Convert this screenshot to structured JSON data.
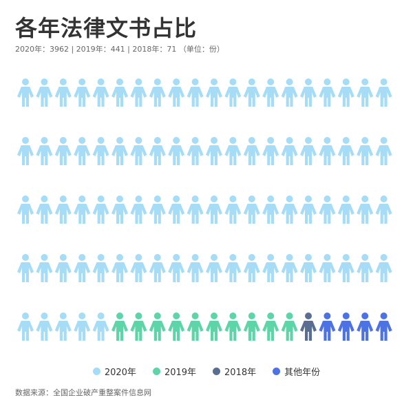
{
  "title": "各年法律文书占比",
  "subtitle": "2020年：3962 | 2019年：441 | 2018年：71 （单位：份）",
  "source": "数据来源：全国企业破产重整案件信息网",
  "chart_data": {
    "type": "pictogram",
    "title": "各年法律文书占比",
    "unit": "份",
    "icon": "person-icon",
    "columns": 20,
    "rows": 5,
    "series": [
      {
        "name": "2020年",
        "value": 3962,
        "icons": 85,
        "color": "#a6dcf6"
      },
      {
        "name": "2019年",
        "value": 441,
        "icons": 10,
        "color": "#5ed5a8"
      },
      {
        "name": "2018年",
        "value": 71,
        "icons": 1,
        "color": "#5a6e92"
      },
      {
        "name": "其他年份",
        "icons": 4,
        "color": "#4d72e3"
      }
    ],
    "legend_position": "bottom"
  }
}
